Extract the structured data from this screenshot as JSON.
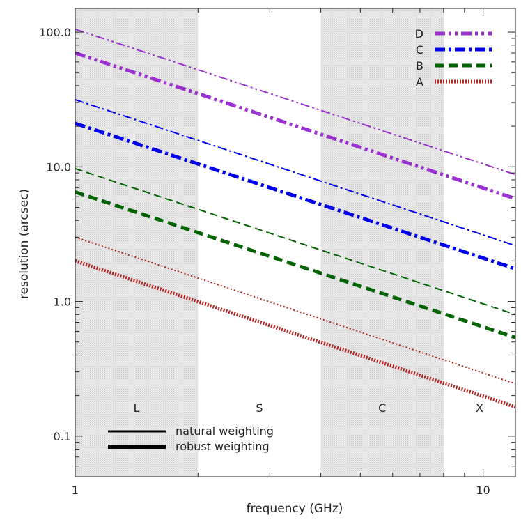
{
  "chart_data": {
    "type": "line",
    "title": "",
    "xlabel": "frequency (GHz)",
    "ylabel": "resolution (arcsec)",
    "xscale": "log",
    "yscale": "log",
    "xlim": [
      1,
      12
    ],
    "ylim": [
      0.05,
      150
    ],
    "xticks": [
      {
        "value": 1,
        "label": "1"
      },
      {
        "value": 10,
        "label": "10"
      }
    ],
    "yticks": [
      {
        "value": 0.1,
        "label": "0.1"
      },
      {
        "value": 1,
        "label": "1.0"
      },
      {
        "value": 10,
        "label": "10.0"
      },
      {
        "value": 100,
        "label": "100.0"
      }
    ],
    "bands": [
      {
        "label": "L",
        "from": 1,
        "to": 2,
        "shaded": true
      },
      {
        "label": "S",
        "from": 2,
        "to": 4,
        "shaded": false
      },
      {
        "label": "C",
        "from": 4,
        "to": 8,
        "shaded": true
      },
      {
        "label": "X",
        "from": 8,
        "to": 12,
        "shaded": false
      }
    ],
    "series": [
      {
        "name": "D",
        "color": "#9b30d0",
        "style": "dash-dot-dot",
        "weighting": "natural",
        "x": [
          1,
          12
        ],
        "y": [
          105,
          8.75
        ]
      },
      {
        "name": "D",
        "color": "#9b30d0",
        "style": "dash-dot-dot",
        "weighting": "robust",
        "x": [
          1,
          12
        ],
        "y": [
          70,
          5.8
        ]
      },
      {
        "name": "C",
        "color": "#0000ee",
        "style": "dash-dot",
        "weighting": "natural",
        "x": [
          1,
          12
        ],
        "y": [
          31.5,
          2.6
        ]
      },
      {
        "name": "C",
        "color": "#0000ee",
        "style": "dash-dot",
        "weighting": "robust",
        "x": [
          1,
          12
        ],
        "y": [
          21,
          1.75
        ]
      },
      {
        "name": "B",
        "color": "#006400",
        "style": "dashed",
        "weighting": "natural",
        "x": [
          1,
          12
        ],
        "y": [
          9.7,
          0.8
        ]
      },
      {
        "name": "B",
        "color": "#006400",
        "style": "dashed",
        "weighting": "robust",
        "x": [
          1,
          12
        ],
        "y": [
          6.5,
          0.54
        ]
      },
      {
        "name": "A",
        "color": "#b22222",
        "style": "dotted",
        "weighting": "natural",
        "x": [
          1,
          12
        ],
        "y": [
          3.0,
          0.245
        ]
      },
      {
        "name": "A",
        "color": "#b22222",
        "style": "dotted",
        "weighting": "robust",
        "x": [
          1,
          12
        ],
        "y": [
          2.0,
          0.165
        ]
      }
    ],
    "legend": {
      "placement": "top-right",
      "entries": [
        {
          "label": "D",
          "color": "#9b30d0",
          "style": "dash-dot-dot"
        },
        {
          "label": "C",
          "color": "#0000ee",
          "style": "dash-dot"
        },
        {
          "label": "B",
          "color": "#006400",
          "style": "dashed"
        },
        {
          "label": "A",
          "color": "#b22222",
          "style": "dotted"
        }
      ]
    },
    "weighting_legend": {
      "placement": "bottom-left",
      "entries": [
        {
          "label": "natural weighting",
          "weight": "thin"
        },
        {
          "label": "robust weighting",
          "weight": "thick"
        }
      ]
    },
    "grid": false
  }
}
